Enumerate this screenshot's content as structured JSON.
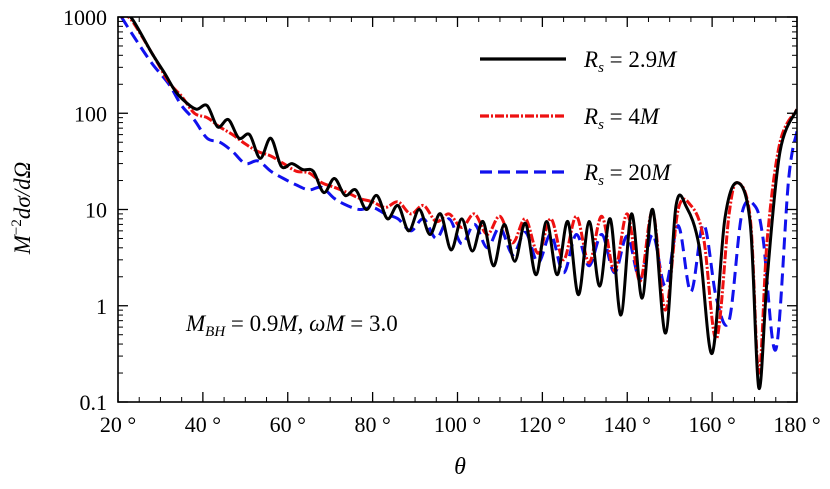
{
  "chart_data": {
    "type": "line",
    "xlabel": "θ",
    "ylabel_parts": {
      "m": "M",
      "exp": "−2",
      "rest": "dσ/dΩ"
    },
    "xlim": [
      20,
      180
    ],
    "ylim": [
      0.1,
      1000
    ],
    "yscale": "log",
    "grid": false,
    "legend_position": "top-right",
    "xticks": [
      20,
      40,
      60,
      80,
      100,
      120,
      140,
      160,
      180
    ],
    "xtick_labels": [
      "20 °",
      "40 °",
      "60 °",
      "80 °",
      "100 °",
      "120 °",
      "140 °",
      "160 °",
      "180 °"
    ],
    "yticks": [
      0.1,
      1,
      10,
      100,
      1000
    ],
    "ytick_labels": [
      "0.1",
      "1",
      "10",
      "100",
      "1000"
    ],
    "annotation": "M_BH = 0.9M, ωM = 3.0",
    "annotation_parts": {
      "m1": "M",
      "sub": "BH",
      "eq1": " = 0.9",
      "m2": "M",
      "comma": ", ",
      "omega": "ωM",
      "eq2": " = 3.0"
    },
    "series": [
      {
        "name": "R_s = 2.9M",
        "label_parts": {
          "r": "R",
          "sub": "s",
          "eq": " = 2.9",
          "m": "M"
        },
        "color": "#000000",
        "style": "solid",
        "x": [
          20.8,
          23,
          28,
          31,
          33.5,
          36,
          38.5,
          41,
          43.5,
          46,
          48.5,
          51,
          53.5,
          56,
          58.5,
          61,
          63.5,
          66,
          68.5,
          71,
          73.5,
          76,
          78.5,
          81,
          83.5,
          86,
          88.5,
          91,
          93.5,
          96,
          98.5,
          101,
          103.5,
          106,
          108.5,
          111,
          113.5,
          116,
          118.5,
          121,
          123.5,
          126,
          128.5,
          131,
          133.5,
          136,
          138.5,
          141,
          143.5,
          146,
          149,
          151.5,
          154,
          157,
          160,
          163,
          166,
          169,
          171,
          173,
          176,
          180
        ],
        "y": [
          1000,
          1000,
          420,
          260,
          170,
          130,
          110,
          120,
          72,
          86,
          55,
          60,
          34,
          55,
          28,
          30,
          26,
          25,
          15,
          21,
          14,
          16,
          10,
          14,
          8,
          11,
          6,
          10,
          5.5,
          9,
          3.8,
          8,
          3.7,
          7.5,
          2.6,
          7,
          2.9,
          7.2,
          2.1,
          7.5,
          2.1,
          7.5,
          1.3,
          7.5,
          1.6,
          8,
          0.8,
          9,
          1.2,
          10,
          0.52,
          11,
          10.5,
          4,
          0.32,
          8,
          19,
          7,
          0.14,
          2,
          40,
          110
        ]
      },
      {
        "name": "R_s = 4M",
        "label_parts": {
          "r": "R",
          "sub": "s",
          "eq": " = 4",
          "m": "M"
        },
        "color": "#ee1111",
        "style": "dash-dot",
        "x": [
          20.8,
          23,
          28,
          32,
          35,
          38,
          41,
          44,
          47,
          50,
          53,
          56,
          59,
          62,
          65,
          68,
          71,
          74,
          77,
          80,
          83,
          86,
          89,
          92,
          95,
          98,
          101,
          104,
          107,
          110,
          113,
          116,
          119,
          122,
          125,
          128,
          131,
          134,
          137,
          140,
          143,
          146,
          149,
          152,
          155,
          158,
          161,
          164,
          166,
          169,
          171,
          173,
          176,
          180
        ],
        "y": [
          1000,
          950,
          420,
          210,
          150,
          100,
          90,
          72,
          60,
          48,
          40,
          36,
          30,
          25,
          24,
          19,
          17,
          15,
          13,
          12,
          10.5,
          12,
          9,
          11,
          7.5,
          9,
          6.5,
          9,
          5.5,
          8.5,
          4.5,
          8,
          3.5,
          8,
          3,
          8.5,
          2.8,
          8.5,
          2.3,
          9,
          1.8,
          9.5,
          0.9,
          10,
          11,
          5,
          0.45,
          9,
          19,
          8,
          0.2,
          5,
          50,
          110
        ]
      },
      {
        "name": "R_s = 20M",
        "label_parts": {
          "r": "R",
          "sub": "s",
          "eq": " = 20",
          "m": "M"
        },
        "color": "#1111ee",
        "style": "dashed",
        "x": [
          20.8,
          24,
          28,
          32,
          35,
          38,
          41,
          44,
          47,
          50,
          53,
          56,
          59,
          62,
          65,
          68,
          71,
          74,
          77,
          80,
          83,
          86,
          89,
          92,
          95,
          98,
          101,
          104,
          107,
          110,
          113,
          116,
          119,
          122,
          125,
          128,
          131,
          134,
          137,
          140,
          143,
          146,
          149,
          152,
          155,
          158,
          161,
          164,
          167,
          170,
          172,
          175,
          178,
          180
        ],
        "y": [
          1000,
          600,
          330,
          200,
          120,
          85,
          55,
          50,
          40,
          30,
          32,
          25,
          21,
          18,
          16,
          17,
          13,
          11,
          10,
          10.5,
          9,
          8,
          6,
          8,
          5,
          8,
          4.4,
          7,
          4,
          6.5,
          3.4,
          5.8,
          2.8,
          5.5,
          2.2,
          5.5,
          2.6,
          5.5,
          2.2,
          5.3,
          1.9,
          5.5,
          1.6,
          6.8,
          1.4,
          7,
          1.2,
          0.7,
          9,
          11,
          5,
          0.35,
          20,
          65
        ]
      }
    ]
  }
}
